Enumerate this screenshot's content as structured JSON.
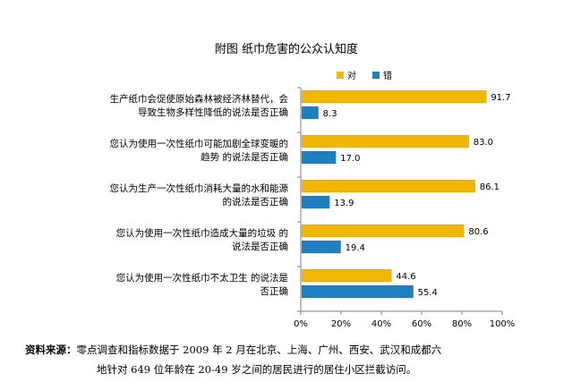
{
  "chart_data": {
    "type": "bar",
    "orientation": "horizontal",
    "title": "附图   纸巾危害的公众认知度",
    "categories": [
      [
        "生产纸巾会促使原始森林被经济林替代，会",
        "导致生物多样性降低的说法是否正确"
      ],
      [
        "您认为使用一次性纸巾可能加剧全球变暖的",
        "趋势 的说法是否正确"
      ],
      [
        "您认为生产一次性纸巾消耗大量的水和能源",
        "的说法是否正确"
      ],
      [
        "您认为使用一次性纸巾造成大量的垃圾 的",
        "说法是否正确"
      ],
      [
        "您认为使用一次性纸巾不太卫生 的说法是",
        "否正确"
      ]
    ],
    "series": [
      {
        "name": "对",
        "color": "#f2b705",
        "values": [
          91.7,
          83.0,
          86.1,
          80.6,
          44.6
        ],
        "labels": [
          "91.7",
          "83.0",
          "86.1",
          "80.6",
          "44.6"
        ]
      },
      {
        "name": "错",
        "color": "#1f7fbf",
        "values": [
          8.3,
          17.0,
          13.9,
          19.4,
          55.4
        ],
        "labels": [
          "8.3",
          "17.0",
          "13.9",
          "19.4",
          "55.4"
        ]
      }
    ],
    "xlim": [
      0,
      100
    ],
    "x_ticks": [
      "0%",
      "20%",
      "40%",
      "60%",
      "80%",
      "100%"
    ],
    "legend_position": "top"
  },
  "source": {
    "label": "资料来源：",
    "line1": "零点调查和指标数据于 2009 年 2 月在北京、上海、广州、西安、武汉和成都六",
    "line2": "地针对 649 位年龄在 20-49 岁之间的居民进行的居住小区拦截访问。"
  }
}
